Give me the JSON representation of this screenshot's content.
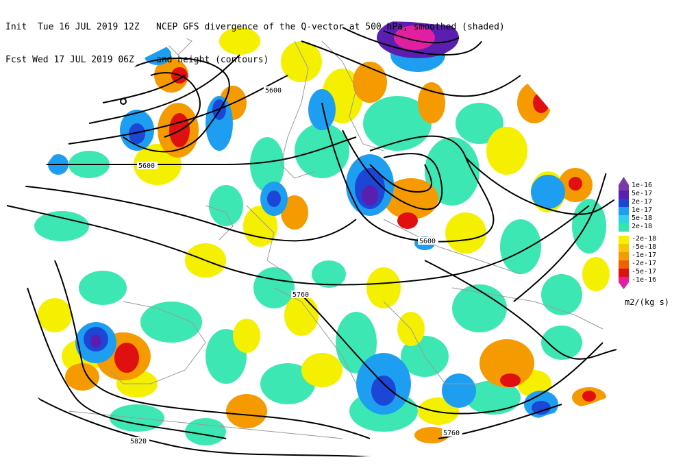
{
  "header": {
    "line1_left": "Init  Tue 16 JUL 2019 12Z",
    "line1_right": "NCEP GFS divergence of the Q-vector at 500 hPa, smoothed (shaded)",
    "line2_left": "Fcst Wed 17 JUL 2019 06Z",
    "line2_right": "and height (contours)"
  },
  "legend": {
    "positive": [
      {
        "label": "1e-16",
        "color": "#7a3aa8"
      },
      {
        "label": "5e-17",
        "color": "#5a1fb0"
      },
      {
        "label": "2e-17",
        "color": "#1c47d6"
      },
      {
        "label": "1e-17",
        "color": "#1e9ef0"
      },
      {
        "label": "5e-18",
        "color": "#2fd3e6"
      },
      {
        "label": "2e-18",
        "color": "#33e6b0"
      }
    ],
    "negative": [
      {
        "label": "-2e-18",
        "color": "#f5f000"
      },
      {
        "label": "-5e-18",
        "color": "#f5c800"
      },
      {
        "label": "-1e-17",
        "color": "#f59a00"
      },
      {
        "label": "-2e-17",
        "color": "#f06000"
      },
      {
        "label": "-5e-17",
        "color": "#e01010"
      },
      {
        "label": "-1e-16",
        "color": "#e020a0"
      }
    ],
    "unit": "m2/(kg s)"
  },
  "contour_labels": [
    "5600",
    "5600",
    "5600",
    "5760",
    "5760",
    "5820"
  ]
}
